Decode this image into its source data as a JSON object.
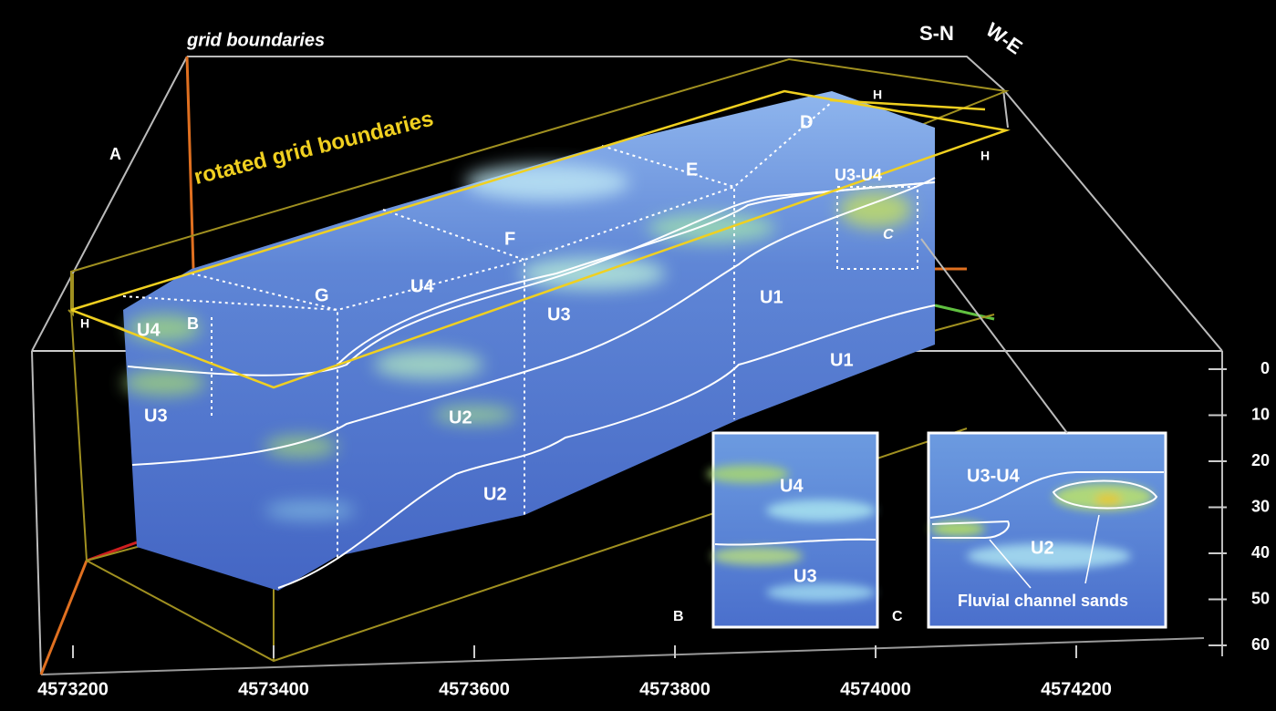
{
  "titles": {
    "grid": "grid boundaries",
    "rotated": "rotated grid boundaries"
  },
  "orientation": [
    "S-N",
    "W-E"
  ],
  "annotations": [
    "A",
    "B",
    "G",
    "F",
    "E",
    "D",
    "H",
    "H",
    "H",
    "U4",
    "U3",
    "U4",
    "U3",
    "U2",
    "U2",
    "U1",
    "U1",
    "U3-U4",
    "C",
    "U4",
    "U3",
    "B",
    "C",
    "U3-U4",
    "U2",
    "Fluvial channel sands"
  ],
  "x_axis": {
    "ticks": [
      4573200,
      4573400,
      4573600,
      4573800,
      4574000,
      4574200
    ]
  },
  "depth_axis": {
    "ticks": [
      0,
      10,
      20,
      30,
      40,
      50,
      60
    ]
  }
}
